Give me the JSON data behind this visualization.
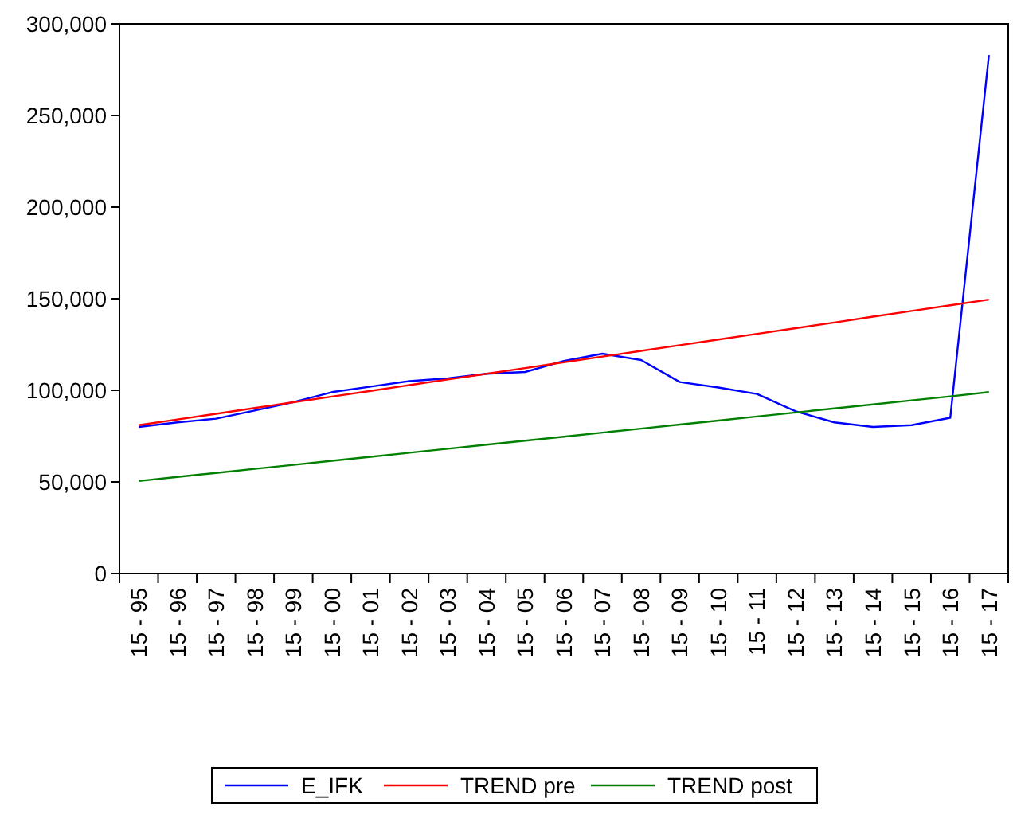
{
  "chart_data": {
    "type": "line",
    "categories": [
      "15 - 95",
      "15 - 96",
      "15 - 97",
      "15 - 98",
      "15 - 99",
      "15 - 00",
      "15 - 01",
      "15 - 02",
      "15 - 03",
      "15 - 04",
      "15 - 05",
      "15 - 06",
      "15 - 07",
      "15 - 08",
      "15 - 09",
      "15 - 10",
      "15 - 11",
      "15 - 12",
      "15 - 13",
      "15 - 14",
      "15 - 15",
      "15 - 16",
      "15 - 17"
    ],
    "series": [
      {
        "name": "E_IFK",
        "color": "#0000ff",
        "values": [
          80000,
          82500,
          84500,
          89000,
          93500,
          99000,
          102000,
          105000,
          106500,
          109000,
          110000,
          116000,
          120000,
          116500,
          104500,
          101500,
          98000,
          88500,
          82500,
          80000,
          81000,
          85000,
          283000
        ]
      },
      {
        "name": "TREND pre",
        "color": "#ff0000",
        "values": [
          81000,
          84100,
          87200,
          90300,
          93500,
          96600,
          99700,
          102800,
          105900,
          109000,
          112100,
          115300,
          118400,
          121500,
          124600,
          127700,
          130800,
          133900,
          137000,
          140200,
          143300,
          146400,
          149500
        ]
      },
      {
        "name": "TREND post",
        "color": "#008000",
        "values": [
          50500,
          52700,
          54900,
          57100,
          59300,
          61500,
          63700,
          65900,
          68100,
          70300,
          72500,
          74700,
          76900,
          79100,
          81300,
          83500,
          85700,
          87900,
          90100,
          92300,
          94500,
          96700,
          99000
        ]
      }
    ],
    "ylim": [
      0,
      300000
    ],
    "yticks": [
      {
        "value": 0,
        "label": "0"
      },
      {
        "value": 50000,
        "label": "50,000"
      },
      {
        "value": 100000,
        "label": "100,000"
      },
      {
        "value": 150000,
        "label": "150,000"
      },
      {
        "value": 200000,
        "label": "200,000"
      },
      {
        "value": 250000,
        "label": "250,000"
      },
      {
        "value": 300000,
        "label": "300,000"
      }
    ],
    "grid": false,
    "legend": "bottom",
    "line_style": "solid",
    "marker": "none"
  }
}
